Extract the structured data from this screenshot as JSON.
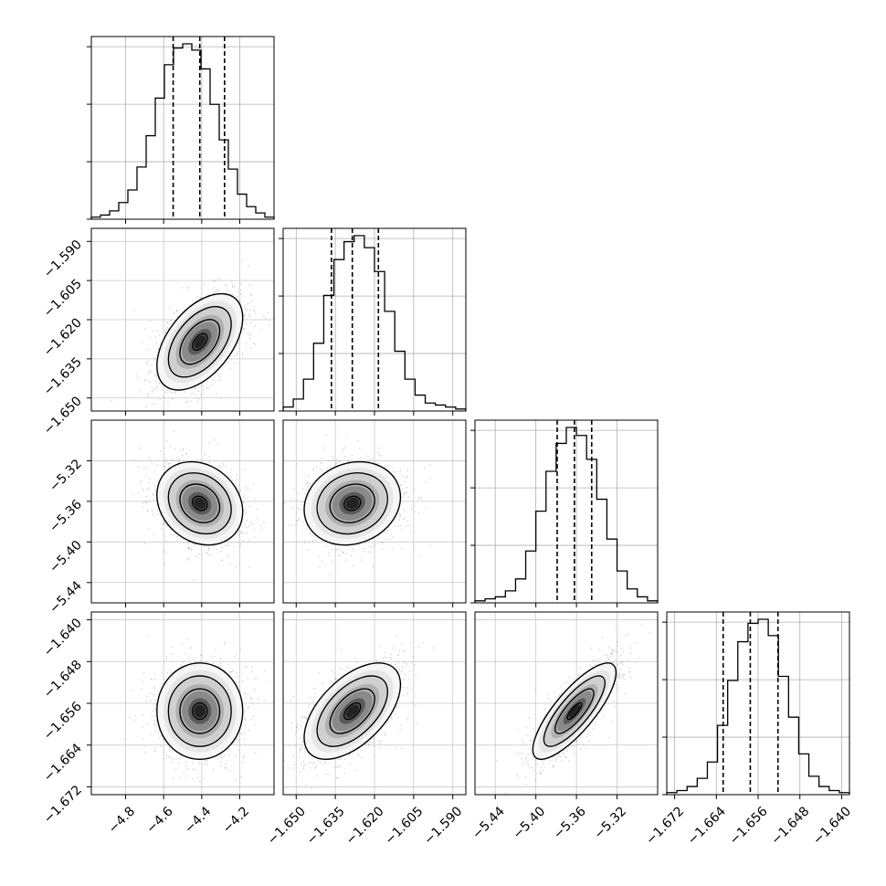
{
  "chart_data": {
    "type": "corner",
    "grid": true,
    "parameters": [
      {
        "range": [
          -4.98,
          -4.02
        ],
        "ticks": [
          -4.8,
          -4.6,
          -4.4,
          -4.2
        ],
        "tick_labels": [
          "−4.8",
          "−4.6",
          "−4.4",
          "−4.2"
        ],
        "quantiles": [
          -4.55,
          -4.41,
          -4.28
        ],
        "hist": [
          1,
          2,
          4,
          8,
          14,
          25,
          40,
          58,
          74,
          82,
          84,
          81,
          72,
          55,
          38,
          24,
          12,
          6,
          3,
          1
        ]
      },
      {
        "range": [
          -1.655,
          -1.585
        ],
        "ticks": [
          -1.65,
          -1.635,
          -1.62,
          -1.605,
          -1.59
        ],
        "tick_labels": [
          "−1.650",
          "−1.635",
          "−1.620",
          "−1.605",
          "−1.590"
        ],
        "quantiles": [
          -1.6365,
          -1.6285,
          -1.6185
        ],
        "hist": [
          2,
          6,
          16,
          34,
          58,
          76,
          85,
          88,
          82,
          70,
          50,
          30,
          16,
          8,
          4,
          3,
          2,
          1
        ]
      },
      {
        "range": [
          -5.46,
          -5.28
        ],
        "ticks": [
          -5.44,
          -5.4,
          -5.36,
          -5.32
        ],
        "tick_labels": [
          "−5.44",
          "−5.40",
          "−5.36",
          "−5.32"
        ],
        "quantiles": [
          -5.379,
          -5.362,
          -5.345
        ],
        "hist": [
          1,
          2,
          3,
          6,
          12,
          26,
          46,
          66,
          80,
          88,
          84,
          72,
          52,
          32,
          16,
          7,
          3,
          1
        ]
      },
      {
        "range": [
          -1.6735,
          -1.6385
        ],
        "ticks": [
          -1.672,
          -1.664,
          -1.656,
          -1.648,
          -1.64
        ],
        "tick_labels": [
          "−1.672",
          "−1.664",
          "−1.656",
          "−1.648",
          "−1.640"
        ],
        "quantiles": [
          -1.6627,
          -1.6575,
          -1.6522
        ],
        "hist": [
          1,
          2,
          4,
          8,
          16,
          34,
          56,
          75,
          84,
          86,
          78,
          58,
          38,
          20,
          9,
          4,
          2,
          1
        ]
      }
    ],
    "pairs": [
      {
        "row": 1,
        "col": 0,
        "mean": [
          -4.41,
          -1.6285
        ],
        "sd": [
          0.11,
          0.009
        ],
        "corr": 0.5
      },
      {
        "row": 2,
        "col": 0,
        "mean": [
          -4.41,
          -5.362
        ],
        "sd": [
          0.11,
          0.02
        ],
        "corr": -0.2
      },
      {
        "row": 2,
        "col": 1,
        "mean": [
          -1.6285,
          -5.362
        ],
        "sd": [
          0.009,
          0.02
        ],
        "corr": 0.15
      },
      {
        "row": 3,
        "col": 0,
        "mean": [
          -4.41,
          -1.6575
        ],
        "sd": [
          0.11,
          0.0045
        ],
        "corr": 0.0
      },
      {
        "row": 3,
        "col": 1,
        "mean": [
          -1.6285,
          -1.6575
        ],
        "sd": [
          0.009,
          0.0045
        ],
        "corr": 0.55
      },
      {
        "row": 3,
        "col": 2,
        "mean": [
          -5.362,
          -1.6575
        ],
        "sd": [
          0.02,
          0.0045
        ],
        "corr": 0.8
      }
    ]
  }
}
